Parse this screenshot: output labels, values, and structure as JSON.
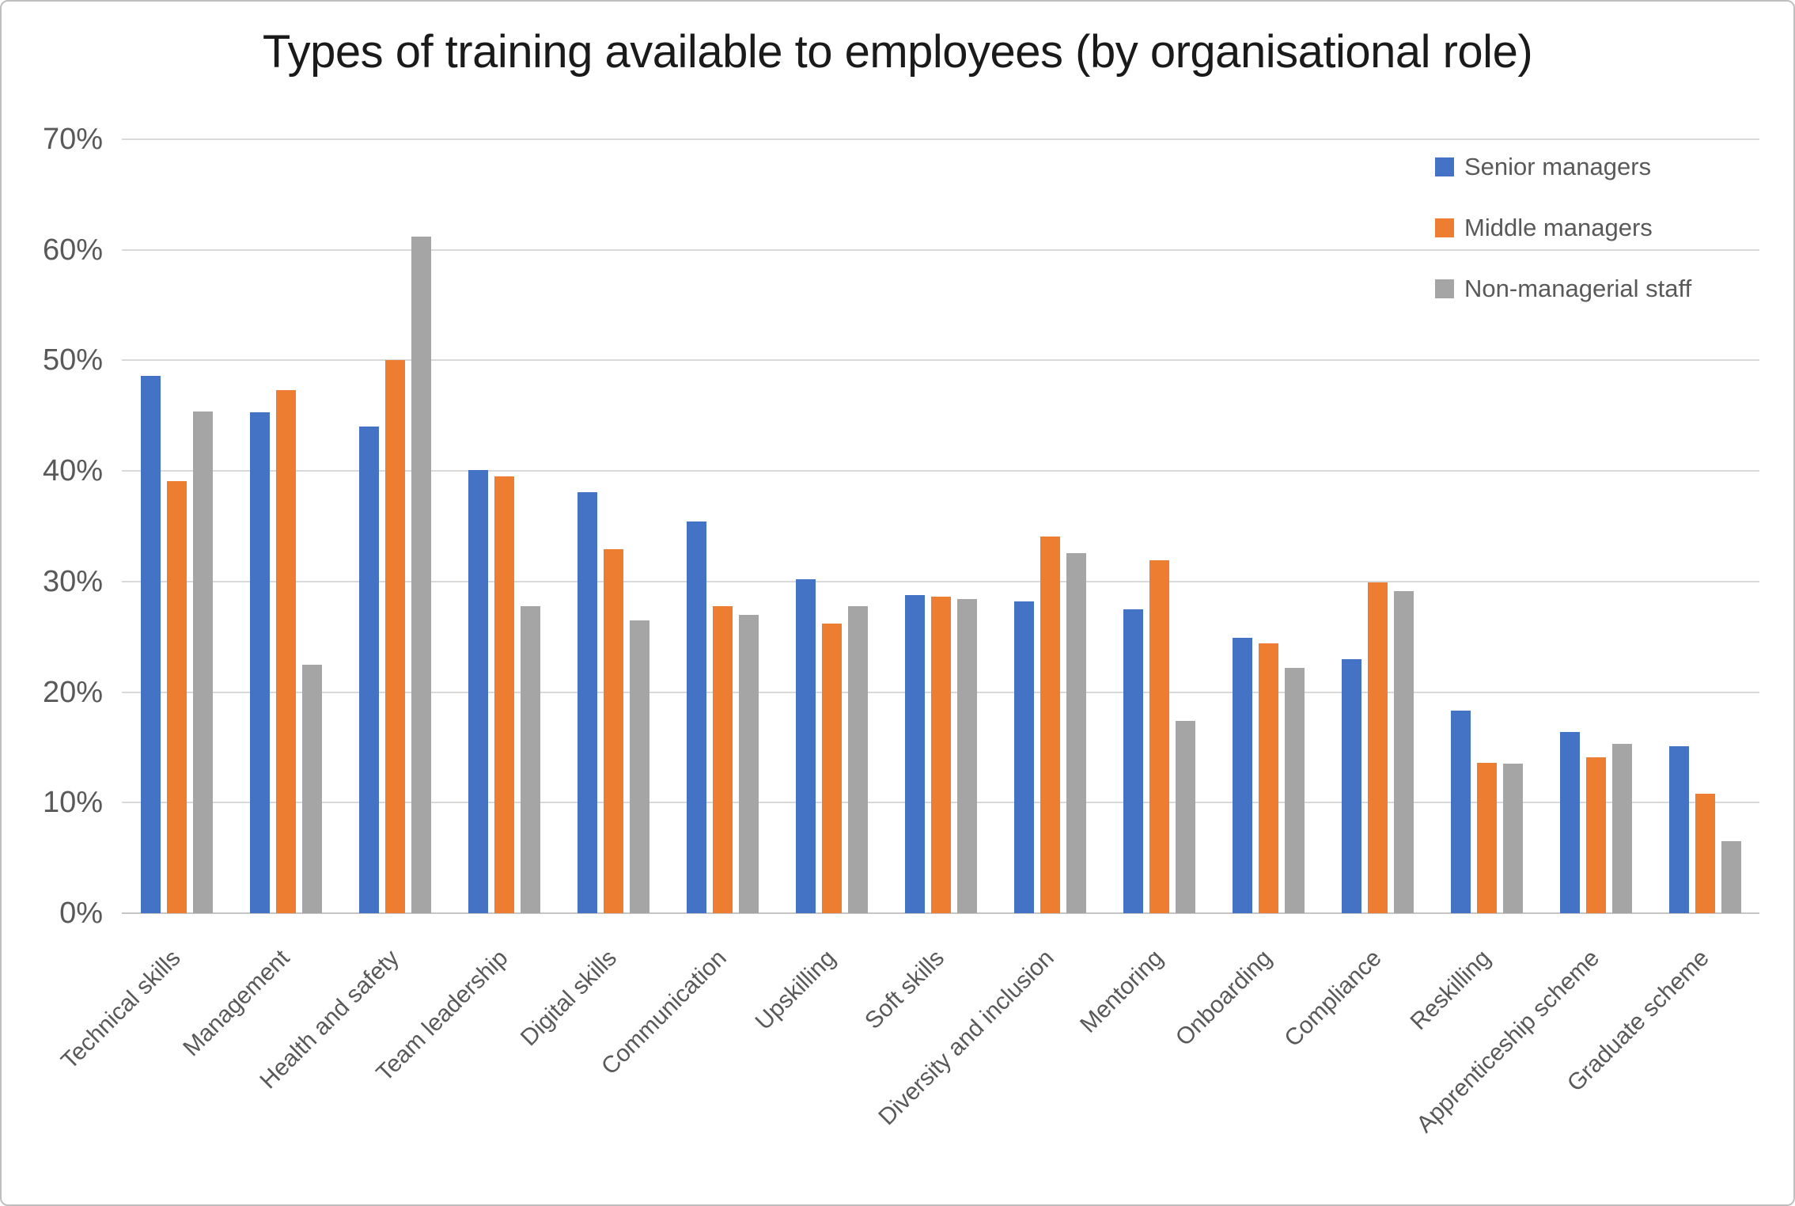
{
  "chart_data": {
    "type": "bar",
    "title": "Types of training available to employees (by organisational role)",
    "categories": [
      "Technical skills",
      "Management",
      "Health and safety",
      "Team leadership",
      "Digital skills",
      "Communication",
      "Upskilling",
      "Soft skills",
      "Diversity and inclusion",
      "Mentoring",
      "Onboarding",
      "Compliance",
      "Reskilling",
      "Apprenticeship scheme",
      "Graduate scheme"
    ],
    "series": [
      {
        "name": "Senior managers",
        "color": "#4472C4",
        "values": [
          48.6,
          45.3,
          44.0,
          40.1,
          38.1,
          35.4,
          30.2,
          28.8,
          28.2,
          27.5,
          24.9,
          23.0,
          18.3,
          16.4,
          15.1
        ]
      },
      {
        "name": "Middle managers",
        "color": "#ED7D31",
        "values": [
          39.1,
          47.3,
          50.0,
          39.5,
          32.9,
          27.8,
          26.2,
          28.6,
          34.1,
          31.9,
          24.4,
          29.9,
          13.6,
          14.1,
          10.8
        ]
      },
      {
        "name": "Non-managerial staff",
        "color": "#A5A5A5",
        "values": [
          45.4,
          22.5,
          61.2,
          27.8,
          26.5,
          27.0,
          27.8,
          28.4,
          32.6,
          17.4,
          22.2,
          29.1,
          13.5,
          15.3,
          6.5
        ]
      }
    ],
    "xlabel": "",
    "ylabel": "",
    "ylim": [
      0,
      70
    ],
    "ytick_step": 10,
    "ytick_labels": [
      "0%",
      "10%",
      "20%",
      "30%",
      "40%",
      "50%",
      "60%",
      "70%"
    ],
    "grid": true,
    "legend_position": "top-right",
    "colors": {
      "gridline": "#d9d9d9",
      "axis_line": "#c6c6c6",
      "tick_label": "#595959",
      "title": "#1a1a1a"
    }
  }
}
